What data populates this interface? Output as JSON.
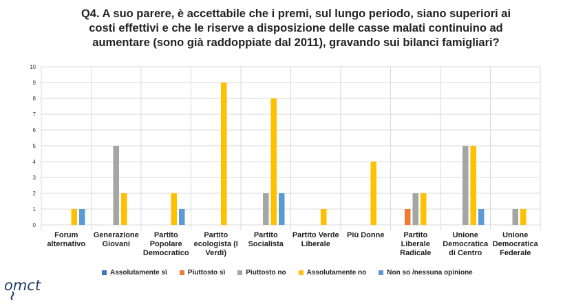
{
  "chart_data": {
    "type": "bar",
    "title_lines": [
      "Q4. A suo parere, è accettabile che i premi, sul lungo periodo, siano superiori ai",
      "costi effettivi e che le riserve a disposizione delle casse malati continuino ad",
      "aumentare (sono già raddoppiate dal 2011), gravando sui bilanci famigliari?"
    ],
    "categories": [
      [
        "Forum",
        "alternativo"
      ],
      [
        "Generazione",
        "Giovani"
      ],
      [
        "Partito",
        "Popolare",
        "Democratico"
      ],
      [
        "Partito",
        "ecologista (I",
        "Verdi)"
      ],
      [
        "Partito",
        "Socialista"
      ],
      [
        "Partito Verde",
        "Liberale"
      ],
      [
        "Più Donne"
      ],
      [
        "Partito",
        "Liberale",
        "Radicale"
      ],
      [
        "Unione",
        "Democratica",
        "di Centro"
      ],
      [
        "Unione",
        "Democratica",
        "Federale"
      ]
    ],
    "series": [
      {
        "name": "Assolutamente sì",
        "color": "#4472c4",
        "values": [
          0,
          0,
          0,
          0,
          0,
          0,
          0,
          0,
          0,
          0
        ]
      },
      {
        "name": "Piuttosto sì",
        "color": "#ed7d31",
        "values": [
          0,
          0,
          0,
          0,
          0,
          0,
          0,
          1,
          0,
          0
        ]
      },
      {
        "name": "Piuttosto no",
        "color": "#a5a5a5",
        "values": [
          0,
          5,
          0,
          0,
          2,
          0,
          0,
          2,
          5,
          1
        ]
      },
      {
        "name": "Assolutamente no",
        "color": "#ffc000",
        "values": [
          1,
          2,
          2,
          9,
          8,
          1,
          4,
          2,
          5,
          1
        ]
      },
      {
        "name": "Non so /nessuna opinione",
        "color": "#5b9bd5",
        "values": [
          1,
          0,
          1,
          0,
          2,
          0,
          0,
          0,
          1,
          0
        ]
      }
    ],
    "ylim": [
      0,
      10
    ],
    "yticks": [
      "0",
      "1",
      "2",
      "3",
      "4",
      "5",
      "6",
      "7",
      "8",
      "9",
      "10"
    ],
    "grid": true,
    "legend_position": "bottom"
  },
  "logo": {
    "text": "omct"
  }
}
